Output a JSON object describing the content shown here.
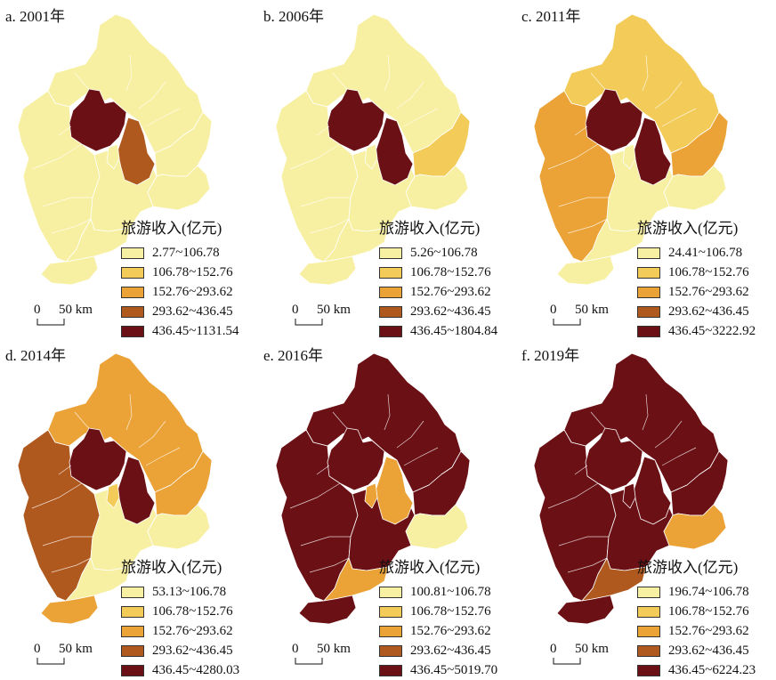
{
  "legend_title": "旅游收入(亿元)",
  "scale": {
    "zero": "0",
    "fifty": "50 km"
  },
  "colors": {
    "c1": "#f7f0a2",
    "c2": "#f2cb59",
    "c3": "#eba338",
    "c4": "#b0591f",
    "c5": "#6b1116"
  },
  "panels": [
    {
      "title": "a. 2001年",
      "legend": [
        "2.77~106.78",
        "106.78~152.76",
        "152.76~293.62",
        "293.62~436.45",
        "436.45~1131.54"
      ],
      "fills": {
        "north": "c1",
        "west": "c1",
        "center": "c1",
        "east": "c1",
        "tianjin_b": "c1",
        "south": "c1",
        "southtip": "c1",
        "tianjin": "c4",
        "beijing": "c5",
        "langfang": "c1"
      }
    },
    {
      "title": "b. 2006年",
      "legend": [
        "5.26~106.78",
        "106.78~152.76",
        "152.76~293.62",
        "293.62~436.45",
        "436.45~1804.84"
      ],
      "fills": {
        "north": "c1",
        "west": "c1",
        "center": "c1",
        "east": "c2",
        "tianjin_b": "c1",
        "south": "c1",
        "southtip": "c1",
        "tianjin": "c5",
        "beijing": "c5",
        "langfang": "c1"
      }
    },
    {
      "title": "c. 2011年",
      "legend": [
        "24.41~106.78",
        "106.78~152.76",
        "152.76~293.62",
        "293.62~436.45",
        "436.45~3222.92"
      ],
      "fills": {
        "north": "c2",
        "west": "c3",
        "center": "c1",
        "east": "c3",
        "tianjin_b": "c1",
        "south": "c1",
        "southtip": "c1",
        "tianjin": "c5",
        "beijing": "c5",
        "langfang": "c1"
      }
    },
    {
      "title": "d. 2014年",
      "legend": [
        "53.13~106.78",
        "106.78~152.76",
        "152.76~293.62",
        "293.62~436.45",
        "436.45~4280.03"
      ],
      "fills": {
        "north": "c3",
        "west": "c4",
        "center": "c1",
        "east": "c3",
        "tianjin_b": "c1",
        "south": "c1",
        "southtip": "c3",
        "tianjin": "c5",
        "beijing": "c5",
        "langfang": "c2"
      }
    },
    {
      "title": "e. 2016年",
      "legend": [
        "100.81~106.78",
        "106.78~152.76",
        "152.76~293.62",
        "293.62~436.45",
        "436.45~5019.70"
      ],
      "fills": {
        "north": "c5",
        "west": "c5",
        "center": "c5",
        "east": "c5",
        "tianjin_b": "c1",
        "south": "c3",
        "southtip": "c5",
        "tianjin": "c3",
        "beijing": "c5",
        "langfang": "c3"
      }
    },
    {
      "title": "f. 2019年",
      "legend": [
        "196.74~106.78",
        "106.78~152.76",
        "152.76~293.62",
        "293.62~436.45",
        "436.45~6224.23"
      ],
      "fills": {
        "north": "c5",
        "west": "c5",
        "center": "c5",
        "east": "c5",
        "tianjin_b": "c3",
        "south": "c4",
        "southtip": "c5",
        "tianjin": "c5",
        "beijing": "c5",
        "langfang": "c5"
      }
    }
  ]
}
